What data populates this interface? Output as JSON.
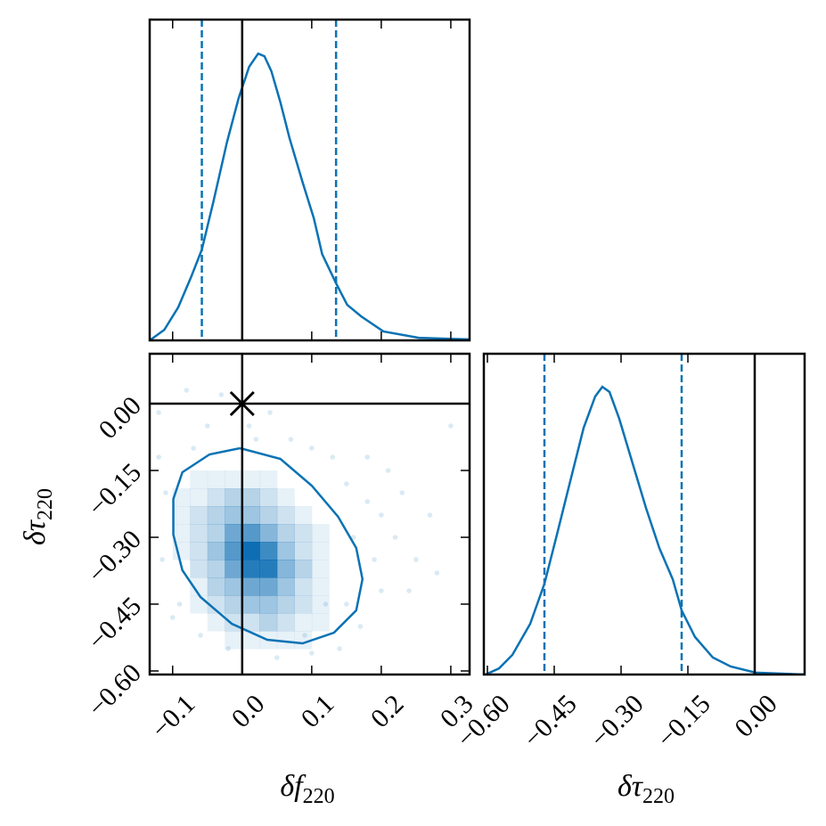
{
  "chart_data": [
    {
      "type": "kde",
      "color": "#0a72b4",
      "x": [
        -0.133,
        -0.112,
        -0.092,
        -0.073,
        -0.058,
        -0.041,
        -0.022,
        -0.005,
        0.01,
        0.023,
        0.032,
        0.042,
        0.055,
        0.068,
        0.087,
        0.103,
        0.115,
        0.135,
        0.151,
        0.171,
        0.203,
        0.254,
        0.327
      ],
      "values": [
        0,
        0.033,
        0.103,
        0.2,
        0.283,
        0.436,
        0.617,
        0.756,
        0.853,
        0.894,
        0.886,
        0.839,
        0.742,
        0.631,
        0.492,
        0.381,
        0.269,
        0.178,
        0.111,
        0.075,
        0.028,
        0.008,
        0.003
      ],
      "xlim": [
        -0.133,
        0.327
      ],
      "ylim": [
        0,
        1
      ],
      "xticks": [
        -0.1,
        0,
        0.1,
        0.2,
        0.3
      ],
      "quantiles": [
        -0.058,
        0.135
      ],
      "truth": 0
    },
    {
      "type": "hist2d",
      "color": "#0a72b4",
      "xlim": [
        -0.133,
        0.327
      ],
      "ylim": [
        -0.608,
        0.112
      ],
      "xticks": [
        {
          "value": -0.1,
          "label": "−0.1"
        },
        {
          "value": 0,
          "label": "0.0"
        },
        {
          "value": 0.1,
          "label": "0.1"
        },
        {
          "value": 0.2,
          "label": "0.2"
        },
        {
          "value": 0.3,
          "label": "0.3"
        }
      ],
      "yticks": [
        {
          "value": -0.6,
          "label": "−0.60"
        },
        {
          "value": -0.45,
          "label": "−0.45"
        },
        {
          "value": -0.3,
          "label": "−0.30"
        },
        {
          "value": -0.15,
          "label": "−0.15"
        },
        {
          "value": 0,
          "label": "0.00"
        }
      ],
      "xlabel": {
        "symbol": "δf",
        "subscript": "220"
      },
      "ylabel": {
        "symbol": "δτ",
        "subscript": "220"
      },
      "hist": {
        "xbins": [
          -0.1,
          -0.075,
          -0.05,
          -0.025,
          0,
          0.025,
          0.05,
          0.075,
          0.1,
          0.125,
          0.15
        ],
        "ybins": [
          -0.55,
          -0.51,
          -0.47,
          -0.43,
          -0.39,
          -0.35,
          -0.31,
          -0.27,
          -0.23,
          -0.19,
          -0.15
        ],
        "counts": [
          [
            0,
            0,
            0,
            1,
            1,
            1,
            1,
            1,
            0,
            0
          ],
          [
            0,
            0,
            1,
            2,
            2,
            3,
            2,
            1,
            1,
            0
          ],
          [
            0,
            1,
            2,
            3,
            4,
            4,
            3,
            2,
            1,
            0
          ],
          [
            0,
            1,
            3,
            4,
            6,
            6,
            4,
            2,
            1,
            0
          ],
          [
            0,
            2,
            3,
            6,
            9,
            9,
            5,
            3,
            1,
            0
          ],
          [
            1,
            2,
            4,
            7,
            10,
            8,
            4,
            2,
            1,
            0
          ],
          [
            1,
            2,
            3,
            6,
            7,
            5,
            3,
            2,
            1,
            0
          ],
          [
            1,
            2,
            3,
            4,
            4,
            3,
            2,
            1,
            0,
            0
          ],
          [
            1,
            1,
            2,
            3,
            3,
            2,
            1,
            0,
            0,
            0
          ],
          [
            0,
            1,
            1,
            1,
            1,
            1,
            0,
            0,
            0,
            0
          ]
        ]
      },
      "scatter": {
        "x": [
          -0.12,
          -0.11,
          -0.115,
          -0.09,
          -0.08,
          -0.05,
          -0.03,
          0.01,
          0.04,
          0.07,
          0.1,
          0.13,
          0.15,
          0.18,
          0.2,
          0.22,
          0.25,
          0.24,
          0.28,
          0.3,
          0.2,
          0.17,
          0.14,
          0.1,
          0.05,
          -0.02,
          -0.06,
          -0.1,
          0.19,
          0.21,
          0.16,
          0.12,
          -0.12,
          0.02,
          0.27,
          0.23,
          0.18,
          -0.07,
          0.09,
          0.15
        ],
        "y": [
          -0.02,
          -0.2,
          -0.35,
          -0.45,
          0.03,
          -0.05,
          0.02,
          -0.05,
          -0.02,
          -0.08,
          -0.1,
          -0.12,
          -0.18,
          -0.22,
          -0.25,
          -0.3,
          -0.35,
          -0.42,
          -0.38,
          -0.05,
          -0.42,
          -0.5,
          -0.55,
          -0.56,
          -0.57,
          -0.55,
          -0.52,
          -0.48,
          -0.35,
          -0.15,
          -0.3,
          -0.45,
          -0.12,
          -0.08,
          -0.25,
          -0.2,
          -0.12,
          -0.1,
          -0.52,
          -0.45
        ]
      },
      "contour": {
        "x": [
          -0.003,
          -0.047,
          -0.086,
          -0.099,
          -0.099,
          -0.086,
          -0.06,
          -0.015,
          0.036,
          0.087,
          0.132,
          0.164,
          0.173,
          0.164,
          0.138,
          0.1,
          0.055,
          -0.003
        ],
        "y": [
          -0.1,
          -0.114,
          -0.154,
          -0.214,
          -0.294,
          -0.374,
          -0.434,
          -0.494,
          -0.53,
          -0.538,
          -0.514,
          -0.464,
          -0.394,
          -0.324,
          -0.254,
          -0.184,
          -0.124,
          -0.1
        ]
      },
      "truth": [
        0,
        0
      ]
    },
    {
      "type": "kde",
      "color": "#0a72b4",
      "x": [
        -0.604,
        -0.574,
        -0.544,
        -0.504,
        -0.472,
        -0.444,
        -0.414,
        -0.384,
        -0.358,
        -0.342,
        -0.326,
        -0.304,
        -0.274,
        -0.244,
        -0.214,
        -0.184,
        -0.164,
        -0.134,
        -0.094,
        -0.054,
        0.002,
        0.112
      ],
      "values": [
        0,
        0.019,
        0.061,
        0.158,
        0.283,
        0.436,
        0.603,
        0.769,
        0.867,
        0.897,
        0.881,
        0.797,
        0.658,
        0.519,
        0.394,
        0.297,
        0.2,
        0.117,
        0.053,
        0.025,
        0.006,
        0
      ],
      "xlim": [
        -0.608,
        0.112
      ],
      "ylim": [
        0,
        1
      ],
      "xticks": [
        {
          "value": -0.6,
          "label": "−0.60"
        },
        {
          "value": -0.45,
          "label": "−0.45"
        },
        {
          "value": -0.3,
          "label": "−0.30"
        },
        {
          "value": -0.15,
          "label": "−0.15"
        },
        {
          "value": 0,
          "label": "0.00"
        }
      ],
      "xlabel": {
        "symbol": "δτ",
        "subscript": "220"
      },
      "quantiles": [
        -0.472,
        -0.164
      ],
      "truth": 0
    }
  ]
}
